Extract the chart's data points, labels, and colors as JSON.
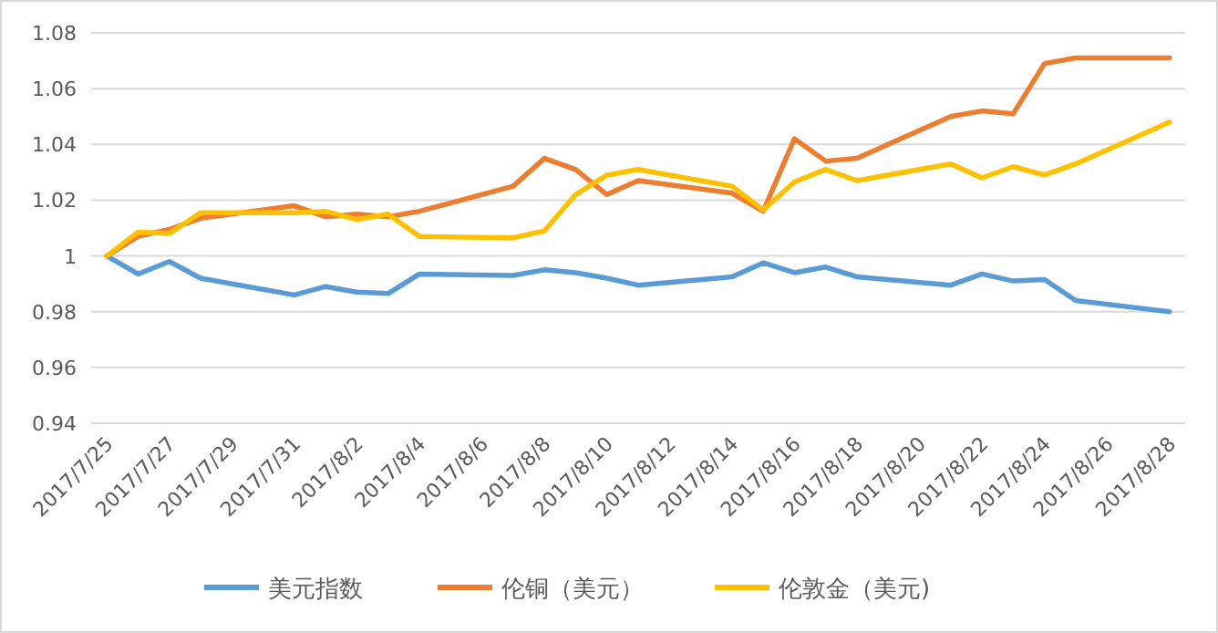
{
  "chart_data": {
    "type": "line",
    "x": [
      "2017-07-25",
      "2017-07-26",
      "2017-07-27",
      "2017-07-28",
      "2017-07-31",
      "2017-08-01",
      "2017-08-02",
      "2017-08-03",
      "2017-08-04",
      "2017-08-07",
      "2017-08-08",
      "2017-08-09",
      "2017-08-10",
      "2017-08-11",
      "2017-08-14",
      "2017-08-15",
      "2017-08-16",
      "2017-08-17",
      "2017-08-18",
      "2017-08-21",
      "2017-08-22",
      "2017-08-23",
      "2017-08-24",
      "2017-08-25",
      "2017-08-28"
    ],
    "series": [
      {
        "name": "美元指数",
        "color": "#5b9bd5",
        "values": [
          1.0,
          0.9935,
          0.998,
          0.992,
          0.986,
          0.989,
          0.987,
          0.9865,
          0.9935,
          0.993,
          0.995,
          0.994,
          0.992,
          0.9895,
          0.9925,
          0.9975,
          0.994,
          0.996,
          0.9925,
          0.9895,
          0.9935,
          0.991,
          0.9915,
          0.984,
          0.98
        ]
      },
      {
        "name": "伦铜（美元）",
        "color": "#ed7d31",
        "values": [
          1.0,
          1.007,
          1.0095,
          1.0135,
          1.018,
          1.014,
          1.015,
          1.014,
          1.016,
          1.025,
          1.035,
          1.031,
          1.022,
          1.027,
          1.0225,
          1.016,
          1.042,
          1.034,
          1.035,
          1.05,
          1.052,
          1.051,
          1.069,
          1.071,
          1.071
        ]
      },
      {
        "name": "伦敦金（美元)",
        "color": "#ffc000",
        "values": [
          1.0,
          1.0085,
          1.008,
          1.0155,
          1.0155,
          1.016,
          1.013,
          1.015,
          1.007,
          1.0065,
          1.009,
          1.022,
          1.029,
          1.031,
          1.025,
          1.0165,
          1.0265,
          1.031,
          1.027,
          1.033,
          1.028,
          1.032,
          1.029,
          1.033,
          1.048
        ]
      }
    ],
    "xlim": [
      "2017-07-24T12:00",
      "2017-08-28T12:00"
    ],
    "xticks": [
      {
        "value": "2017-07-25",
        "label": "2017/7/25"
      },
      {
        "value": "2017-07-27",
        "label": "2017/7/27"
      },
      {
        "value": "2017-07-29",
        "label": "2017/7/29"
      },
      {
        "value": "2017-07-31",
        "label": "2017/7/31"
      },
      {
        "value": "2017-08-02",
        "label": "2017/8/2"
      },
      {
        "value": "2017-08-04",
        "label": "2017/8/4"
      },
      {
        "value": "2017-08-06",
        "label": "2017/8/6"
      },
      {
        "value": "2017-08-08",
        "label": "2017/8/8"
      },
      {
        "value": "2017-08-10",
        "label": "2017/8/10"
      },
      {
        "value": "2017-08-12",
        "label": "2017/8/12"
      },
      {
        "value": "2017-08-14",
        "label": "2017/8/14"
      },
      {
        "value": "2017-08-16",
        "label": "2017/8/16"
      },
      {
        "value": "2017-08-18",
        "label": "2017/8/18"
      },
      {
        "value": "2017-08-20",
        "label": "2017/8/20"
      },
      {
        "value": "2017-08-22",
        "label": "2017/8/22"
      },
      {
        "value": "2017-08-24",
        "label": "2017/8/24"
      },
      {
        "value": "2017-08-26",
        "label": "2017/8/26"
      },
      {
        "value": "2017-08-28",
        "label": "2017/8/28"
      }
    ],
    "ylim": [
      0.94,
      1.08
    ],
    "yticks": [
      0.94,
      0.96,
      0.98,
      {
        "value": 1.0,
        "label": "1"
      },
      1.02,
      1.04,
      1.06,
      1.08
    ],
    "grid": "y",
    "legend": "bottom",
    "marker": "none",
    "line_style": "solid"
  }
}
